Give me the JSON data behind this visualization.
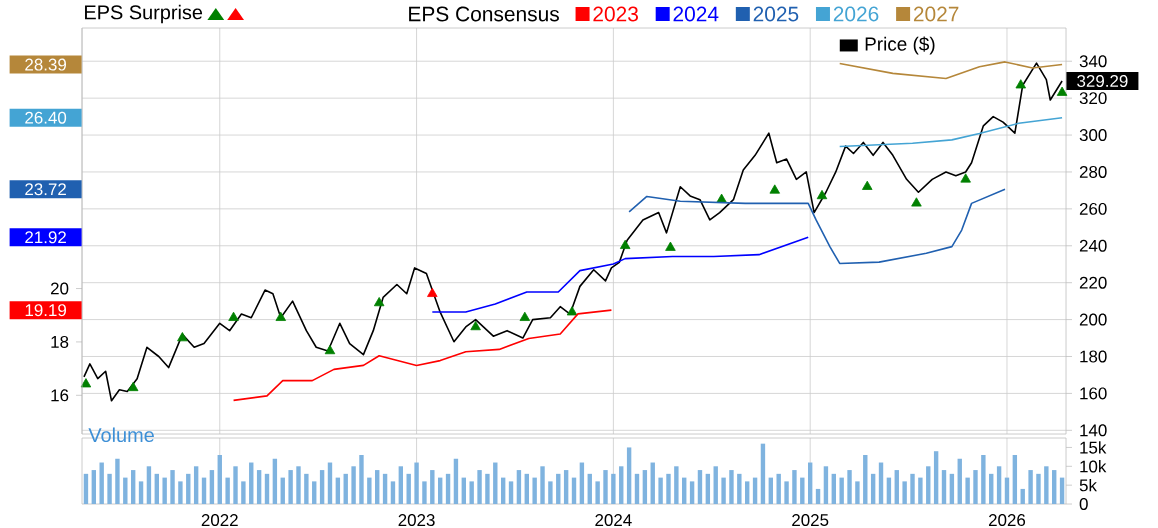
{
  "chart_data": [
    {
      "type": "line",
      "legend_title": "EPS Consensus",
      "legend": "top",
      "grid": true,
      "tick_labels": "y",
      "annotations": [
        "EPS Surprise"
      ],
      "xlim": [
        2021.3,
        2026.3
      ],
      "xticks": [
        2022,
        2023,
        2024,
        2025,
        2026
      ],
      "ylim": [
        138,
        358
      ],
      "yticks": [
        140,
        160,
        180,
        200,
        220,
        240,
        260,
        280,
        300,
        320,
        340
      ],
      "y2lim": [
        14.55,
        29.76
      ],
      "y2ticks": [
        16,
        18,
        20,
        {
          "value": 19.19,
          "label": "19.19"
        },
        {
          "value": 21.92,
          "label": "21.92"
        },
        {
          "value": 23.72,
          "label": "23.72"
        },
        {
          "value": 26.4,
          "label": "26.40"
        },
        {
          "value": 28.39,
          "label": "28.39"
        }
      ],
      "series": [
        {
          "name": "Price ($)",
          "type": "line",
          "color": "#000000",
          "x": [
            2021.31,
            2021.34,
            2021.38,
            2021.42,
            2021.45,
            2021.49,
            2021.53,
            2021.58,
            2021.63,
            2021.69,
            2021.74,
            2021.81,
            2021.87,
            2021.92,
            2022.0,
            2022.05,
            2022.11,
            2022.16,
            2022.23,
            2022.27,
            2022.31,
            2022.37,
            2022.44,
            2022.49,
            2022.55,
            2022.61,
            2022.66,
            2022.73,
            2022.78,
            2022.83,
            2022.9,
            2022.95,
            2022.99,
            2023.05,
            2023.12,
            2023.19,
            2023.25,
            2023.3,
            2023.39,
            2023.46,
            2023.54,
            2023.59,
            2023.68,
            2023.73,
            2023.78,
            2023.83,
            2023.9,
            2023.96,
            2023.99,
            2024.03,
            2024.07,
            2024.15,
            2024.23,
            2024.27,
            2024.34,
            2024.39,
            2024.44,
            2024.49,
            2024.54,
            2024.61,
            2024.66,
            2024.72,
            2024.79,
            2024.83,
            2024.88,
            2024.93,
            2024.98,
            2025.02,
            2025.08,
            2025.13,
            2025.18,
            2025.22,
            2025.27,
            2025.32,
            2025.37,
            2025.42,
            2025.49,
            2025.55,
            2025.62,
            2025.69,
            2025.74,
            2025.79,
            2025.82,
            2025.88,
            2025.93,
            2025.98,
            2026.04,
            2026.08,
            2026.15,
            2026.2,
            2026.22,
            2026.28
          ],
          "values": [
            169,
            176,
            168,
            172,
            156,
            162,
            161,
            168,
            185,
            180,
            174,
            192,
            185,
            187,
            198,
            194,
            203,
            201,
            216,
            214,
            201,
            210,
            194,
            185,
            183,
            198,
            187,
            181,
            194,
            212,
            219,
            214,
            228,
            225,
            204,
            188,
            196,
            200,
            191,
            194,
            190,
            200,
            201,
            207,
            203,
            218,
            227,
            221,
            228,
            231,
            243,
            254,
            258,
            247,
            272,
            267,
            265,
            254,
            258,
            265,
            281,
            289,
            301,
            285,
            287,
            276,
            280,
            258,
            269,
            280,
            294,
            290,
            296,
            289,
            296,
            289,
            276,
            269,
            276,
            280,
            278,
            280,
            285,
            305,
            310,
            307,
            301,
            327,
            339,
            330,
            319,
            329.29
          ],
          "value_labels": [
            null,
            null,
            null,
            null,
            null,
            null,
            null,
            null,
            null,
            null,
            null,
            null,
            null,
            null,
            null,
            null,
            null,
            null,
            null,
            null,
            null,
            null,
            null,
            null,
            null,
            null,
            null,
            null,
            null,
            null,
            null,
            null,
            null,
            null,
            null,
            null,
            null,
            null,
            null,
            null,
            null,
            null,
            null,
            null,
            null,
            null,
            null,
            null,
            null,
            null,
            null,
            null,
            null,
            null,
            null,
            null,
            null,
            null,
            null,
            null,
            null,
            null,
            null,
            null,
            null,
            null,
            null,
            null,
            null,
            null,
            null,
            null,
            null,
            null,
            null,
            null,
            null,
            null,
            null,
            null,
            null,
            null,
            null,
            null,
            null,
            null,
            null,
            null,
            null,
            null,
            null,
            "329.29"
          ]
        },
        {
          "type": "scatter",
          "marker": "triangle",
          "color": "#008000",
          "x": [
            2021.32,
            2021.56,
            2021.81,
            2022.07,
            2022.31,
            2022.56,
            2022.81,
            2023.3,
            2023.55,
            2023.79,
            2024.06,
            2024.29,
            2024.55,
            2024.82,
            2025.06,
            2025.29,
            2025.54,
            2025.79,
            2026.07,
            2026.28
          ],
          "values": [
            165,
            163,
            190,
            201,
            201,
            183,
            209,
            196,
            201,
            204,
            240,
            239,
            265,
            270,
            267,
            272,
            263,
            276,
            327,
            323
          ]
        },
        {
          "type": "scatter",
          "marker": "triangle",
          "color": "#ff0000",
          "x": [
            2023.08
          ],
          "values": [
            214
          ]
        },
        {
          "name": "2023",
          "type": "line",
          "axis": "y2",
          "color": "#ff0000",
          "x": [
            2022.07,
            2022.24,
            2022.32,
            2022.47,
            2022.58,
            2022.73,
            2022.81,
            2023.0,
            2023.12,
            2023.25,
            2023.42,
            2023.57,
            2023.73,
            2023.82,
            2023.99
          ],
          "values": [
            15.81,
            15.98,
            16.55,
            16.55,
            16.97,
            17.12,
            17.48,
            17.12,
            17.3,
            17.63,
            17.72,
            18.13,
            18.3,
            19.05,
            19.19
          ]
        },
        {
          "name": "2024",
          "type": "line",
          "axis": "y2",
          "color": "#0000ff",
          "x": [
            2023.08,
            2023.25,
            2023.4,
            2023.56,
            2023.72,
            2023.83,
            2024.0,
            2024.06,
            2024.3,
            2024.51,
            2024.74,
            2024.99
          ],
          "values": [
            19.12,
            19.12,
            19.42,
            19.87,
            19.87,
            20.67,
            20.92,
            21.12,
            21.2,
            21.2,
            21.27,
            21.92
          ]
        },
        {
          "name": "2025",
          "type": "line",
          "axis": "y2",
          "color": "#2060b0",
          "x": [
            2024.08,
            2024.17,
            2024.34,
            2024.67,
            2024.99,
            2025.03,
            2025.1,
            2025.15,
            2025.35,
            2025.59,
            2025.72,
            2025.77,
            2025.82,
            2025.99
          ],
          "values": [
            22.87,
            23.45,
            23.27,
            23.19,
            23.19,
            22.57,
            21.57,
            20.94,
            20.99,
            21.32,
            21.57,
            22.19,
            23.19,
            23.72
          ]
        },
        {
          "name": "2026",
          "type": "line",
          "axis": "y2",
          "color": "#44a4d4",
          "x": [
            2025.15,
            2025.52,
            2025.72,
            2025.86,
            2026.06,
            2026.28
          ],
          "values": [
            25.32,
            25.44,
            25.57,
            25.81,
            26.19,
            26.4
          ]
        },
        {
          "name": "2027",
          "type": "line",
          "axis": "y2",
          "color": "#b5873a",
          "x": [
            2025.15,
            2025.42,
            2025.69,
            2025.86,
            2025.99,
            2026.13,
            2026.28
          ],
          "values": [
            28.43,
            28.06,
            27.87,
            28.31,
            28.49,
            28.26,
            28.39
          ]
        }
      ]
    },
    {
      "type": "bar",
      "title": "Volume",
      "color": "#7fb3df",
      "grid": "x",
      "xlim": [
        2021.3,
        2026.3
      ],
      "xticks": [
        2022,
        2023,
        2024,
        2025,
        2026
      ],
      "ylim": [
        0,
        17500
      ],
      "yticks": [
        0,
        {
          "value": 5000,
          "label": "5k"
        },
        {
          "value": 10000,
          "label": "10k"
        },
        {
          "value": 15000,
          "label": "15k"
        }
      ],
      "x": [
        2021.32,
        2021.36,
        2021.4,
        2021.44,
        2021.48,
        2021.52,
        2021.56,
        2021.6,
        2021.64,
        2021.68,
        2021.72,
        2021.76,
        2021.8,
        2021.84,
        2021.88,
        2021.92,
        2021.96,
        2022,
        2022.04,
        2022.08,
        2022.12,
        2022.16,
        2022.2,
        2022.24,
        2022.28,
        2022.32,
        2022.36,
        2022.4,
        2022.44,
        2022.48,
        2022.52,
        2022.56,
        2022.6,
        2022.64,
        2022.68,
        2022.72,
        2022.76,
        2022.8,
        2022.84,
        2022.88,
        2022.92,
        2022.96,
        2023,
        2023.04,
        2023.08,
        2023.12,
        2023.16,
        2023.2,
        2023.24,
        2023.28,
        2023.32,
        2023.36,
        2023.4,
        2023.44,
        2023.48,
        2023.52,
        2023.56,
        2023.6,
        2023.64,
        2023.68,
        2023.72,
        2023.76,
        2023.8,
        2023.84,
        2023.88,
        2023.92,
        2023.96,
        2024,
        2024.04,
        2024.08,
        2024.12,
        2024.16,
        2024.2,
        2024.24,
        2024.28,
        2024.32,
        2024.36,
        2024.4,
        2024.44,
        2024.48,
        2024.52,
        2024.56,
        2024.6,
        2024.64,
        2024.68,
        2024.72,
        2024.76,
        2024.8,
        2024.84,
        2024.88,
        2024.92,
        2024.96,
        2025,
        2025.04,
        2025.08,
        2025.12,
        2025.16,
        2025.2,
        2025.24,
        2025.28,
        2025.32,
        2025.36,
        2025.4,
        2025.44,
        2025.48,
        2025.52,
        2025.56,
        2025.6,
        2025.64,
        2025.68,
        2025.72,
        2025.76,
        2025.8,
        2025.84,
        2025.88,
        2025.92,
        2025.96,
        2026,
        2026.04,
        2026.08,
        2026.12,
        2026.16,
        2026.2,
        2026.24,
        2026.28
      ],
      "values": [
        8000,
        9000,
        11000,
        8000,
        12000,
        7000,
        9000,
        6000,
        10000,
        8000,
        7000,
        9000,
        6000,
        8000,
        10000,
        7000,
        9000,
        13000,
        7000,
        10000,
        6000,
        11000,
        9000,
        8000,
        12000,
        7000,
        9000,
        10000,
        8000,
        6000,
        9000,
        11000,
        7000,
        8000,
        10000,
        13000,
        7000,
        9000,
        8000,
        6000,
        10000,
        8000,
        11000,
        6000,
        9000,
        7000,
        8000,
        12000,
        7000,
        6000,
        9000,
        8000,
        11000,
        7000,
        6000,
        9000,
        8000,
        7000,
        10000,
        6000,
        8000,
        9000,
        7000,
        11000,
        8000,
        6000,
        9000,
        8000,
        10000,
        15000,
        8000,
        9000,
        11000,
        7000,
        8000,
        10000,
        7000,
        6000,
        9000,
        8000,
        10000,
        7000,
        9000,
        8000,
        6000,
        7000,
        16000,
        7000,
        8000,
        6000,
        9000,
        7000,
        11000,
        4000,
        10000,
        8000,
        7000,
        9000,
        6000,
        13000,
        8000,
        11000,
        7000,
        9000,
        6000,
        8000,
        7000,
        10000,
        14000,
        9000,
        8000,
        12000,
        7000,
        9000,
        13000,
        8000,
        10000,
        7000,
        13000,
        4000,
        9000,
        8000,
        10000,
        9000,
        7000
      ]
    }
  ]
}
